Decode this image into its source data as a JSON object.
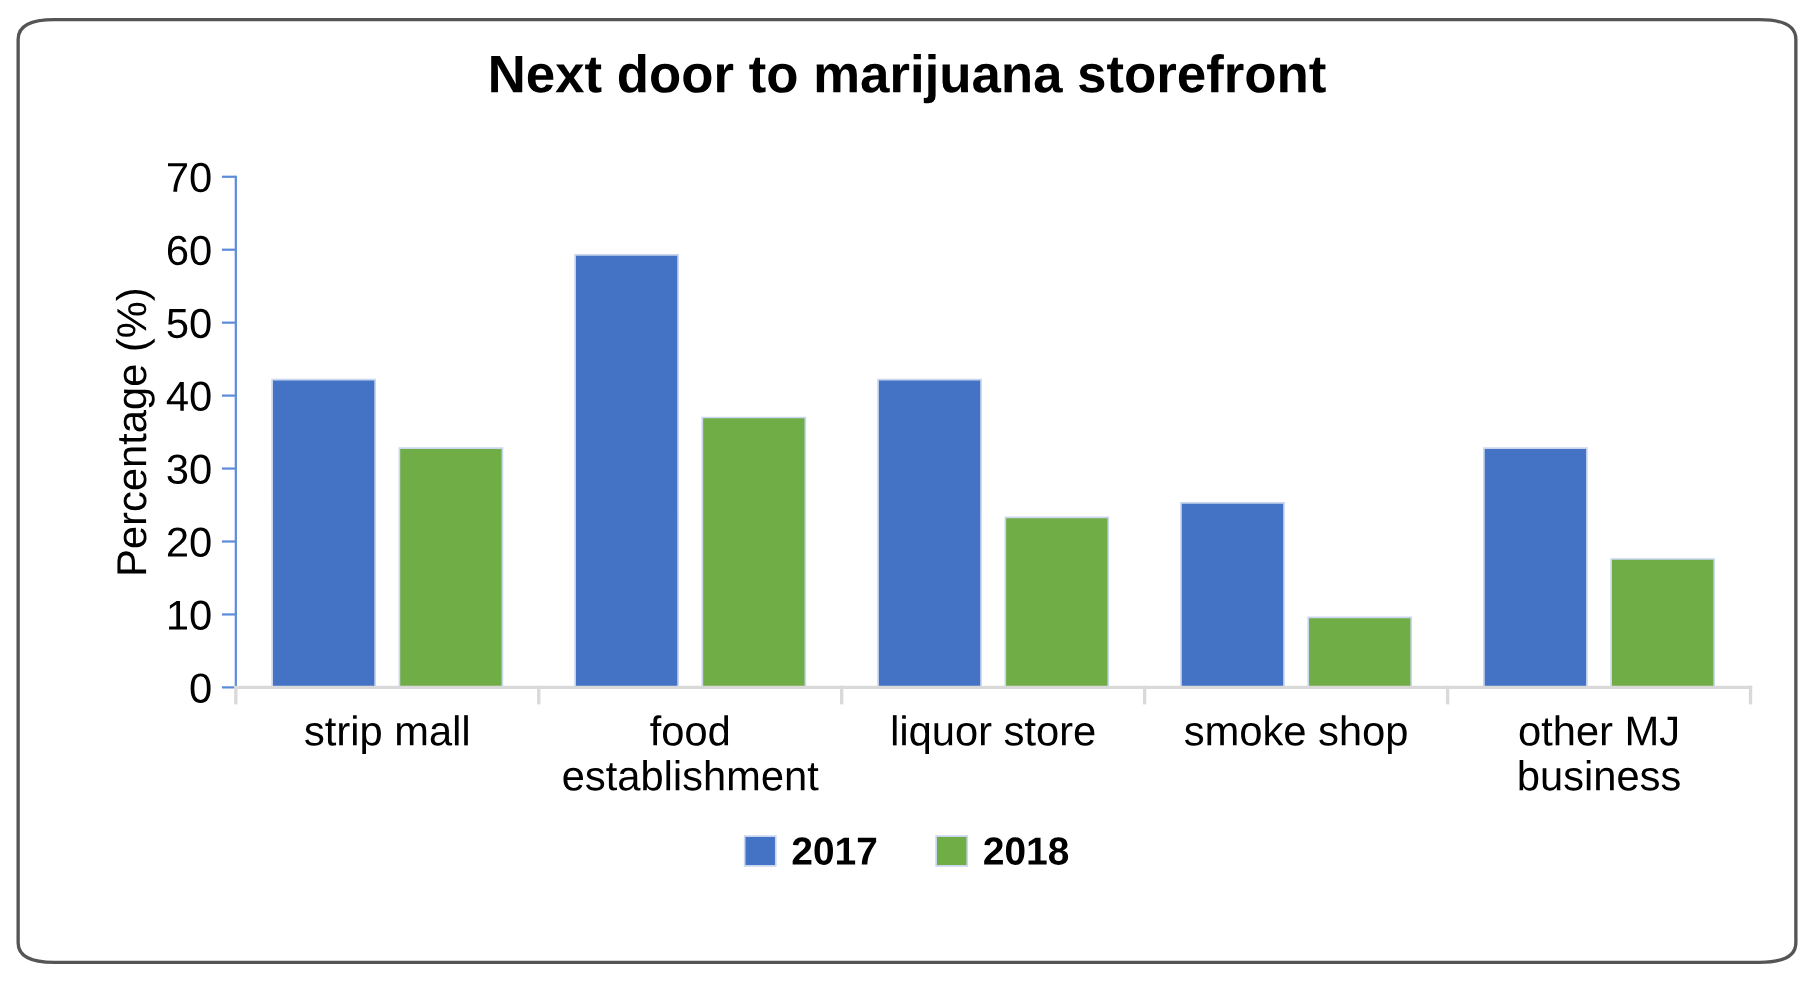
{
  "chart_data": {
    "type": "bar",
    "title": "Next door to marijuana storefront",
    "ylabel": "Percentage (%)",
    "categories": [
      "strip mall",
      "food\nestablishment",
      "liquor store",
      "smoke shop",
      "other MJ\nbusiness"
    ],
    "series": [
      {
        "name": "2017",
        "color": "#4472c4",
        "values": [
          42.2,
          59.3,
          42.2,
          25.3,
          32.8
        ]
      },
      {
        "name": "2018",
        "color": "#70ad47",
        "values": [
          32.8,
          37.0,
          23.3,
          9.6,
          17.6
        ]
      }
    ],
    "ylim": [
      0,
      70
    ],
    "yticks": [
      0,
      10,
      20,
      30,
      40,
      50,
      60,
      70
    ],
    "grid": false,
    "legend": "bottom"
  }
}
